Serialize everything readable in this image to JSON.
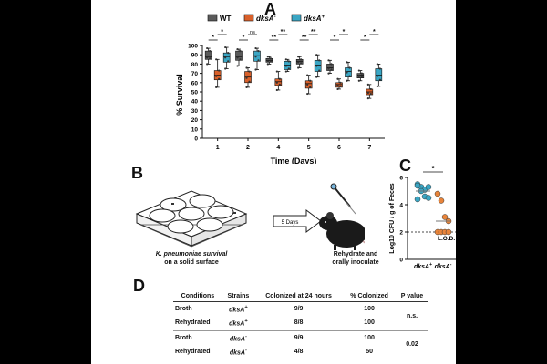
{
  "panels": {
    "a": "A",
    "b": "B",
    "c": "C",
    "d": "D"
  },
  "chart_data": [
    {
      "type": "box",
      "panel": "A",
      "title": "",
      "xlabel": "Time (Days)",
      "ylabel": "% Survival",
      "ylim": [
        0,
        100
      ],
      "yticks": [
        "0",
        "10",
        "20",
        "30",
        "40",
        "50",
        "60",
        "70",
        "80",
        "90",
        "100"
      ],
      "categories": [
        "1",
        "2",
        "4",
        "5",
        "6",
        "7"
      ],
      "legend": [
        {
          "name": "WT",
          "color": "#5a5a5a",
          "italic": false,
          "sup": ""
        },
        {
          "name": "dksA",
          "color": "#d9602a",
          "italic": true,
          "sup": "-"
        },
        {
          "name": "dksA",
          "color": "#3aa6c4",
          "italic": true,
          "sup": "+"
        }
      ],
      "series": [
        {
          "name": "WT",
          "color": "#5a5a5a",
          "boxes": [
            [
              80,
              85,
              88,
              94,
              97
            ],
            [
              78,
              84,
              88,
              94,
              96
            ],
            [
              80,
              82,
              84,
              86,
              88
            ],
            [
              76,
              80,
              83,
              85,
              88
            ],
            [
              70,
              73,
              76,
              80,
              84
            ],
            [
              62,
              65,
              68,
              70,
              73
            ]
          ]
        },
        {
          "name": "dksA-",
          "color": "#d9602a",
          "boxes": [
            [
              55,
              63,
              68,
              73,
              85
            ],
            [
              55,
              60,
              66,
              72,
              76
            ],
            [
              52,
              57,
              61,
              64,
              72
            ],
            [
              48,
              54,
              59,
              62,
              68
            ],
            [
              53,
              55,
              58,
              60,
              64
            ],
            [
              43,
              47,
              50,
              53,
              58
            ]
          ]
        },
        {
          "name": "dksA+",
          "color": "#3aa6c4",
          "boxes": [
            [
              75,
              82,
              88,
              92,
              98
            ],
            [
              74,
              83,
              89,
              94,
              97
            ],
            [
              72,
              74,
              79,
              83,
              85
            ],
            [
              66,
              72,
              79,
              84,
              90
            ],
            [
              62,
              66,
              72,
              76,
              82
            ],
            [
              56,
              62,
              68,
              75,
              80
            ]
          ]
        }
      ],
      "annotations": [
        {
          "day": "1",
          "sig": [
            "*",
            "*"
          ]
        },
        {
          "day": "2",
          "sig": [
            "*",
            "ns"
          ]
        },
        {
          "day": "4",
          "sig": [
            "**",
            "**"
          ]
        },
        {
          "day": "5",
          "sig": [
            "**",
            "**"
          ]
        },
        {
          "day": "6",
          "sig": [
            "*",
            "*"
          ]
        },
        {
          "day": "7",
          "sig": [
            "*",
            "*"
          ]
        }
      ]
    },
    {
      "type": "scatter",
      "panel": "C",
      "ylabel": "Log10 CFU / g of Feces",
      "ylim": [
        0,
        6
      ],
      "yticks": [
        "0",
        "2",
        "4",
        "6"
      ],
      "categories": [
        "dksA+",
        "dksA-"
      ],
      "lod_label": "L.O.D.",
      "lod": 2,
      "significance": "*",
      "series": [
        {
          "name": "dksA+",
          "color": "#3aa6c4",
          "values": [
            5.5,
            5.3,
            5.1,
            5.3,
            5.4,
            5.0,
            4.6,
            4.5,
            4.4
          ],
          "mean": 5.0
        },
        {
          "name": "dksA-",
          "color": "#e8843a",
          "values": [
            4.8,
            4.3,
            3.1,
            2.8,
            2.0,
            2.0,
            2.0,
            2.0
          ],
          "mean": 2.8
        }
      ]
    }
  ],
  "panel_b": {
    "plate_caption_line1": "K. pneumoniae survival",
    "plate_caption_line2": "on a solid surface",
    "arrow_label": "5 Days",
    "mouse_caption_line1": "Rehydrate and",
    "mouse_caption_line2": "orally inoculate"
  },
  "table": {
    "headers": [
      "Conditions",
      "Strains",
      "Colonized at 24 hours",
      "% Colonized",
      "P value"
    ],
    "rows": [
      {
        "condition": "Broth",
        "strain": "dksA",
        "sup": "+",
        "colonized": "9/9",
        "pct": "100"
      },
      {
        "condition": "Rehydrated",
        "strain": "dksA",
        "sup": "+",
        "colonized": "8/8",
        "pct": "100"
      },
      {
        "condition": "Broth",
        "strain": "dksA",
        "sup": "-",
        "colonized": "9/9",
        "pct": "100"
      },
      {
        "condition": "Rehydrated",
        "strain": "dksA",
        "sup": "-",
        "colonized": "4/8",
        "pct": "50"
      }
    ],
    "p_values": [
      "n.s.",
      "0.02"
    ]
  }
}
